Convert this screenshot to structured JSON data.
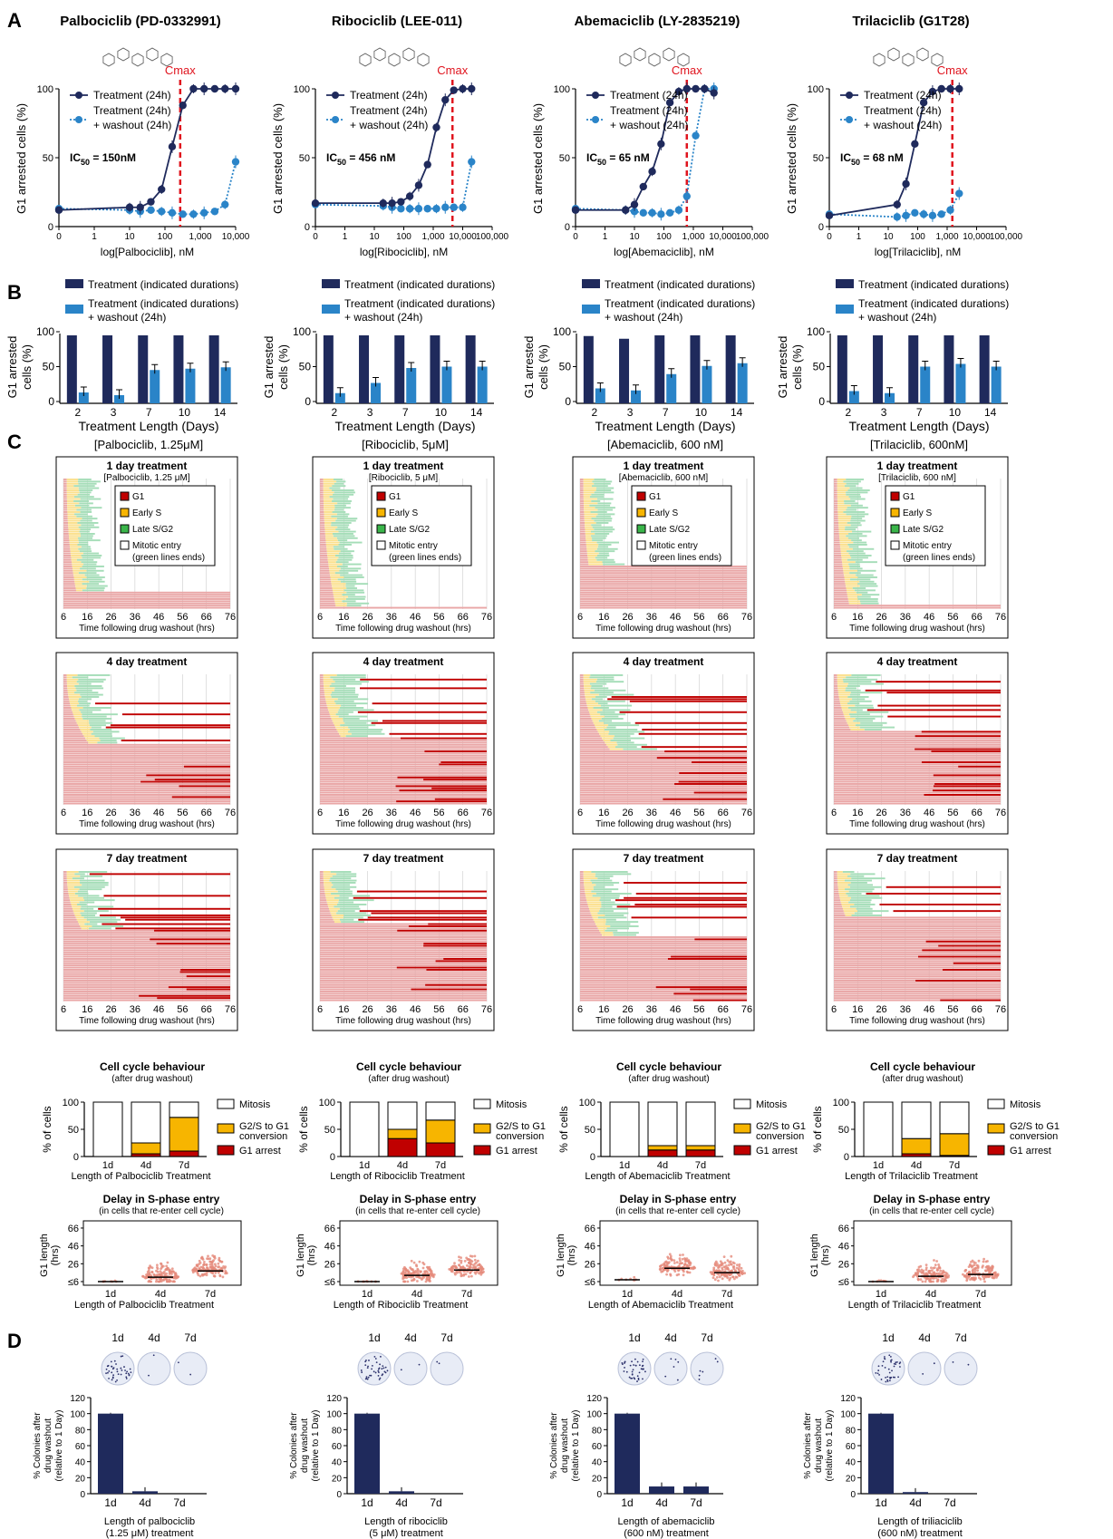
{
  "panel_letters": [
    "A",
    "B",
    "C",
    "D"
  ],
  "colors": {
    "navy": "#1f2a5c",
    "blue": "#2a84c8",
    "red": "#e0141e",
    "g1": "#e9a6a6",
    "earlyS": "#fbe08e",
    "lateSG2": "#a5ddb8",
    "g1arrest": "#c00000",
    "bar_orange": "#f7b500",
    "plate": "#e8ecf6"
  },
  "drugs": [
    {
      "title": "Palbociclib (PD-0332991)",
      "cmax": "Cmax",
      "ic50_prefix": "IC",
      "ic50_sub": "50",
      "ic50_value": " = 150nM",
      "dose_xlabel": "log[Palbociclib], nM",
      "bar_caption": "[Palbociclib, 1.25μM]",
      "c_subtitle": "[Palbociclib, 1.25 μM]",
      "c_behaviour_xlabel": "Length of Palbociclib Treatment",
      "d_caption_1": "Length of palbociclib",
      "d_caption_2": "(1.25 μM) treatment"
    },
    {
      "title": "Ribociclib (LEE-011)",
      "cmax": "Cmax",
      "ic50_prefix": "IC",
      "ic50_sub": "50",
      "ic50_value": " = 456 nM",
      "dose_xlabel": "log[Ribociclib], nM",
      "bar_caption": "[Ribociclib, 5μM]",
      "c_subtitle": "[Ribociclib, 5 μM]",
      "c_behaviour_xlabel": "Length of Ribociclib Treatment",
      "d_caption_1": "Length of ribociclib",
      "d_caption_2": "(5 μM) treatment"
    },
    {
      "title": "Abemaciclib (LY-2835219)",
      "cmax": "Cmax",
      "ic50_prefix": "IC",
      "ic50_sub": "50",
      "ic50_value": " = 65 nM",
      "dose_xlabel": "log[Abemaciclib], nM",
      "bar_caption": "[Abemaciclib, 600 nM]",
      "c_subtitle": "[Abemaciclib, 600 nM]",
      "c_behaviour_xlabel": "Length of Abemaciclib Treatment",
      "d_caption_1": "Length of abemaciclib",
      "d_caption_2": "(600 nM) treatment"
    },
    {
      "title": "Trilaciclib (G1T28)",
      "cmax": "Cmax",
      "ic50_prefix": "IC",
      "ic50_sub": "50",
      "ic50_value": " = 68 nM",
      "dose_xlabel": "log[Trilaciclib], nM",
      "bar_caption": "[Trilaciclib, 600nM]",
      "c_subtitle": "[Trilaciclib, 600 nM]",
      "c_behaviour_xlabel": "Length of Trilaciclib Treatment",
      "d_caption_1": "Length of triliaciclib",
      "d_caption_2": "(600 nM) treatment"
    }
  ],
  "dose_panel": {
    "ylabel": "G1 arrested cells (%)",
    "yticks": [
      "0",
      "50",
      "100"
    ],
    "xticks": [
      "0",
      "1",
      "10",
      "100",
      "1,000",
      "10,000",
      "100,000"
    ],
    "legend_treat": "Treatment (24h)",
    "legend_wash_1": "Treatment (24h)",
    "legend_wash_2": "+ washout (24h)"
  },
  "bar_panel": {
    "ylabel_1": "G1 arrested",
    "ylabel_2": "cells (%)",
    "yticks": [
      "0",
      "50",
      "100"
    ],
    "xlabel": "Treatment Length (Days)",
    "days": [
      "2",
      "3",
      "7",
      "10",
      "14"
    ],
    "legend_treat": "Treatment (indicated durations)",
    "legend_wash_1": "Treatment (indicated durations)",
    "legend_wash_2": "+ washout (24h)"
  },
  "track_panel": {
    "titles": [
      "1 day treatment",
      "4 day treatment",
      "7 day treatment"
    ],
    "xticks": [
      "6",
      "16",
      "26",
      "36",
      "46",
      "56",
      "66",
      "76"
    ],
    "xlabel": "Time following drug washout (hrs)",
    "legend": [
      "G1",
      "Early S",
      "Late S/G2",
      "Mitotic entry",
      "(green lines ends)"
    ]
  },
  "behaviour_panel": {
    "title": "Cell cycle behaviour",
    "subtitle": "(after drug washout)",
    "ylabel": "% of cells",
    "yticks": [
      "0",
      "50",
      "100"
    ],
    "cats": [
      "1d",
      "4d",
      "7d"
    ],
    "legend_mitosis": "Mitosis",
    "legend_conv_1": "G2/S to G1",
    "legend_conv_2": "conversion",
    "legend_arrest": "G1 arrest"
  },
  "delay_panel": {
    "title": "Delay in S-phase entry",
    "subtitle": "(in cells that re-enter cell cycle)",
    "ylabel_1": "G1 length",
    "ylabel_2": "(hrs)",
    "yticks": [
      "≤6",
      "26",
      "46",
      "66"
    ],
    "cats": [
      "1d",
      "4d",
      "7d"
    ]
  },
  "colony_panel": {
    "plate_labels": [
      "1d",
      "4d",
      "7d"
    ],
    "ylabel_1": "% Colonies after",
    "ylabel_2": "drug washout",
    "ylabel_3": "(relative to 1 Day)",
    "yticks": [
      "0",
      "20",
      "40",
      "60",
      "80",
      "100",
      "120"
    ],
    "cats": [
      "1d",
      "4d",
      "7d"
    ]
  },
  "chart_data": [
    {
      "type": "line",
      "panel": "A",
      "xlabel": "log[drug], nM",
      "ylabel": "G1 arrested cells (%)",
      "ylim": [
        0,
        100
      ],
      "xscale": "log",
      "series_by_drug": [
        {
          "drug": "Palbociclib (PD-0332991)",
          "ic50_nM": 150,
          "treatment_24h": {
            "x": [
              0,
              10,
              20,
              40,
              80,
              160,
              320,
              640,
              1280,
              2560,
              5000,
              10000
            ],
            "y": [
              12,
              14,
              14,
              18,
              27,
              58,
              88,
              100,
              100,
              100,
              100,
              100
            ]
          },
          "treatment_washout": {
            "x": [
              0,
              10,
              20,
              40,
              80,
              160,
              320,
              640,
              1280,
              2560,
              5000,
              10000
            ],
            "y": [
              13,
              12,
              11,
              12,
              11,
              10,
              9,
              9,
              10,
              11,
              16,
              47
            ]
          },
          "cmax_nM": 270
        },
        {
          "drug": "Ribociclib (LEE-011)",
          "ic50_nM": 456,
          "treatment_24h": {
            "x": [
              0,
              20,
              40,
              80,
              160,
              320,
              640,
              1280,
              2560,
              5000,
              10000,
              20000
            ],
            "y": [
              17,
              17,
              17,
              18,
              22,
              30,
              45,
              72,
              92,
              99,
              100,
              100
            ]
          },
          "treatment_washout": {
            "x": [
              0,
              20,
              40,
              80,
              160,
              320,
              640,
              1280,
              2560,
              5000,
              10000,
              20000
            ],
            "y": [
              16,
              15,
              14,
              13,
              13,
              13,
              13,
              13,
              14,
              14,
              14,
              47
            ]
          },
          "cmax_nM": 4500
        },
        {
          "drug": "Abemaciclib (LY-2835219)",
          "ic50_nM": 65,
          "treatment_24h": {
            "x": [
              0,
              5,
              10,
              20,
              40,
              80,
              160,
              320,
              600,
              1200,
              2400,
              5000
            ],
            "y": [
              12,
              12,
              16,
              29,
              40,
              60,
              90,
              98,
              100,
              100,
              100,
              97
            ]
          },
          "treatment_washout": {
            "x": [
              0,
              5,
              10,
              20,
              40,
              80,
              160,
              320,
              600,
              1200,
              2400,
              5000
            ],
            "y": [
              13,
              12,
              11,
              10,
              10,
              9,
              10,
              12,
              22,
              66,
              100,
              100
            ]
          },
          "cmax_nM": 600
        },
        {
          "drug": "Trilaciclib (G1T28)",
          "ic50_nM": 68,
          "treatment_24h": {
            "x": [
              0,
              20,
              40,
              80,
              160,
              320,
              640,
              1280,
              2560
            ],
            "y": [
              8,
              16,
              31,
              60,
              90,
              98,
              100,
              100,
              100
            ]
          },
          "treatment_washout": {
            "x": [
              0,
              20,
              40,
              80,
              160,
              320,
              640,
              1280,
              2560
            ],
            "y": [
              9,
              7,
              8,
              10,
              9,
              8,
              9,
              12,
              24
            ]
          },
          "cmax_nM": 1500
        }
      ]
    },
    {
      "type": "bar",
      "panel": "B",
      "categories": [
        "2",
        "3",
        "7",
        "10",
        "14"
      ],
      "xlabel": "Treatment Length (Days)",
      "ylabel": "G1 arrested cells (%)",
      "ylim": [
        0,
        100
      ],
      "series_by_drug": [
        {
          "drug": "Palbociclib",
          "series": [
            {
              "name": "Treatment (indicated durations)",
              "values": [
                100,
                100,
                100,
                100,
                100
              ]
            },
            {
              "name": "Treatment (indicated durations) + washout (24h)",
              "values": [
                16,
                12,
                49,
                51,
                53
              ]
            }
          ]
        },
        {
          "drug": "Ribociclib",
          "series": [
            {
              "name": "Treatment (indicated durations)",
              "values": [
                100,
                100,
                100,
                100,
                100
              ]
            },
            {
              "name": "Treatment (indicated durations) + washout (24h)",
              "values": [
                15,
                30,
                52,
                54,
                54
              ]
            }
          ]
        },
        {
          "drug": "Abemaciclib",
          "series": [
            {
              "name": "Treatment (indicated durations)",
              "values": [
                99,
                95,
                100,
                100,
                100
              ]
            },
            {
              "name": "Treatment (indicated durations) + washout (24h)",
              "values": [
                22,
                19,
                43,
                55,
                59
              ]
            }
          ]
        },
        {
          "drug": "Trilaciclib",
          "series": [
            {
              "name": "Treatment (indicated durations)",
              "values": [
                100,
                100,
                100,
                100,
                100
              ]
            },
            {
              "name": "Treatment (indicated durations) + washout (24h)",
              "values": [
                18,
                15,
                54,
                58,
                54
              ]
            }
          ]
        }
      ]
    },
    {
      "type": "bar",
      "panel": "C-behaviour",
      "stacked": true,
      "categories": [
        "1d",
        "4d",
        "7d"
      ],
      "ylabel": "% of cells",
      "ylim": [
        0,
        100
      ],
      "series_by_drug": [
        {
          "drug": "Palbociclib",
          "g1_arrest": [
            0,
            5,
            10
          ],
          "g2s_to_g1": [
            0,
            20,
            62
          ],
          "mitosis": [
            100,
            75,
            28
          ]
        },
        {
          "drug": "Ribociclib",
          "g1_arrest": [
            0,
            33,
            25
          ],
          "g2s_to_g1": [
            0,
            17,
            42
          ],
          "mitosis": [
            100,
            50,
            33
          ]
        },
        {
          "drug": "Abemaciclib",
          "g1_arrest": [
            0,
            12,
            12
          ],
          "g2s_to_g1": [
            0,
            8,
            8
          ],
          "mitosis": [
            100,
            80,
            80
          ]
        },
        {
          "drug": "Trilaciclib",
          "g1_arrest": [
            0,
            5,
            2
          ],
          "g2s_to_g1": [
            0,
            28,
            40
          ],
          "mitosis": [
            100,
            67,
            58
          ]
        }
      ]
    },
    {
      "type": "scatter",
      "panel": "C-delay",
      "categories": [
        "1d",
        "4d",
        "7d"
      ],
      "ylabel": "G1 length (hrs)",
      "ylim": [
        6,
        70
      ],
      "median_by_drug": [
        {
          "drug": "Palbociclib",
          "median": [
            6,
            11,
            18
          ]
        },
        {
          "drug": "Ribociclib",
          "median": [
            6,
            13,
            19
          ]
        },
        {
          "drug": "Abemaciclib",
          "median": [
            8,
            21,
            16
          ]
        },
        {
          "drug": "Trilaciclib",
          "median": [
            6,
            12,
            14
          ]
        }
      ]
    },
    {
      "type": "bar",
      "panel": "D",
      "categories": [
        "1d",
        "4d",
        "7d"
      ],
      "ylabel": "% Colonies after drug washout (relative to 1 Day)",
      "ylim": [
        0,
        120
      ],
      "series_by_drug": [
        {
          "drug": "Palbociclib",
          "values": [
            100,
            3,
            0
          ]
        },
        {
          "drug": "Ribociclib",
          "values": [
            100,
            3,
            0
          ]
        },
        {
          "drug": "Abemaciclib",
          "values": [
            100,
            9,
            9
          ]
        },
        {
          "drug": "Trilaciclib",
          "values": [
            100,
            2,
            0
          ]
        }
      ]
    }
  ]
}
